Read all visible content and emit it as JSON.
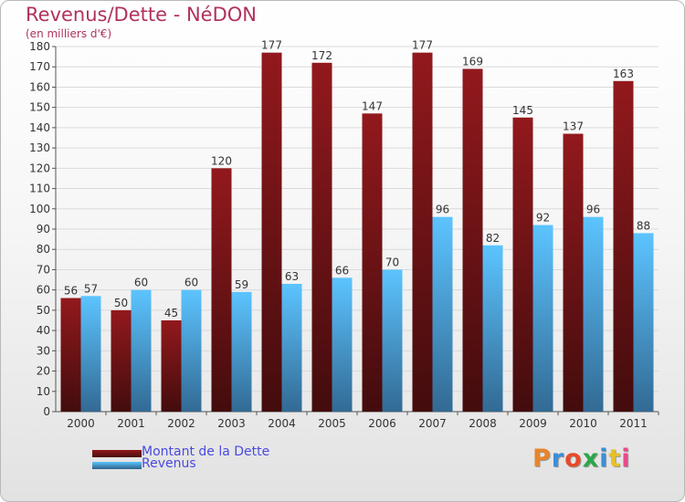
{
  "chart_data": {
    "type": "bar",
    "title": "Revenus/Dette - NéDON",
    "subtitle": "(en milliers d'€)",
    "categories": [
      "2000",
      "2001",
      "2002",
      "2003",
      "2004",
      "2005",
      "2006",
      "2007",
      "2008",
      "2009",
      "2010",
      "2011"
    ],
    "series": [
      {
        "name": "Montant de la Dette",
        "color": "#7a1518",
        "values": [
          56,
          50,
          45,
          120,
          177,
          172,
          147,
          177,
          169,
          145,
          137,
          163
        ]
      },
      {
        "name": "Revenus",
        "color": "#4da3e4",
        "values": [
          57,
          60,
          60,
          59,
          63,
          66,
          70,
          96,
          82,
          92,
          96,
          88
        ]
      }
    ],
    "ylim": [
      0,
      180
    ],
    "ytick_step": 10,
    "grid": true,
    "legend": "bottom-left"
  },
  "logo": {
    "text": "Proxiti",
    "letter_colors": [
      "#e8842a",
      "#3a8fd8",
      "#e84a2a",
      "#2aa84a",
      "#3a8fd8",
      "#e8c02a",
      "#e84a8a"
    ]
  }
}
